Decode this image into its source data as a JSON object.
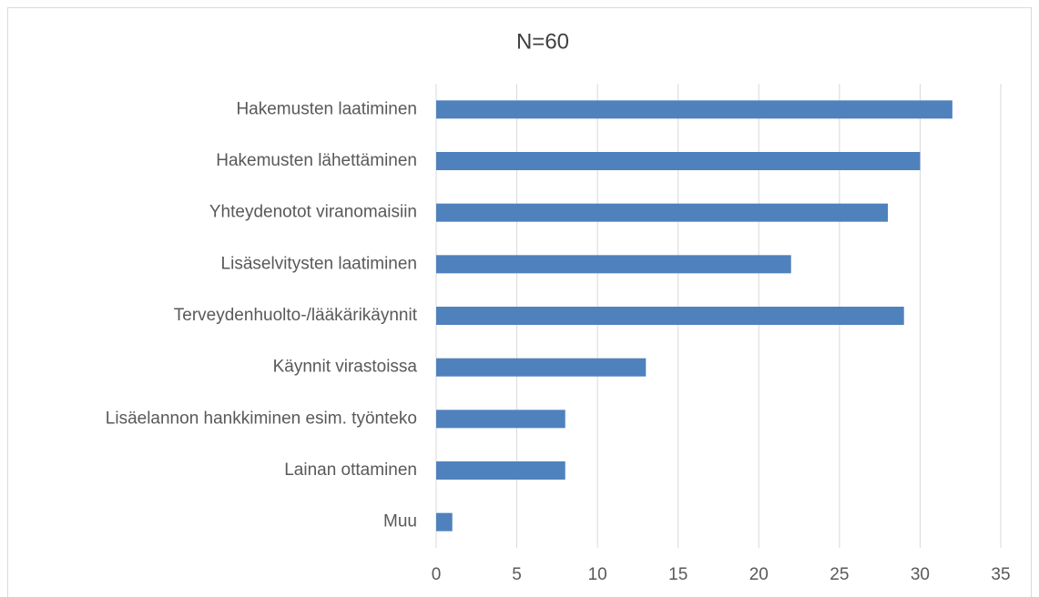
{
  "chart_data": {
    "type": "bar",
    "orientation": "horizontal",
    "title": "N=60",
    "categories": [
      "Hakemusten laatiminen",
      "Hakemusten lähettäminen",
      "Yhteydenotot viranomaisiin",
      "Lisäselvitysten laatiminen",
      "Terveydenhuolto-/lääkärikäynnit",
      "Käynnit virastoissa",
      "Lisäelannon hankkiminen esim. työnteko",
      "Lainan ottaminen",
      "Muu"
    ],
    "values": [
      32,
      30,
      28,
      22,
      29,
      13,
      8,
      8,
      1
    ],
    "color": "#4f81bd",
    "xlim": [
      0,
      35
    ],
    "xticks": [
      0,
      5,
      10,
      15,
      20,
      25,
      30,
      35
    ],
    "grid": true
  }
}
